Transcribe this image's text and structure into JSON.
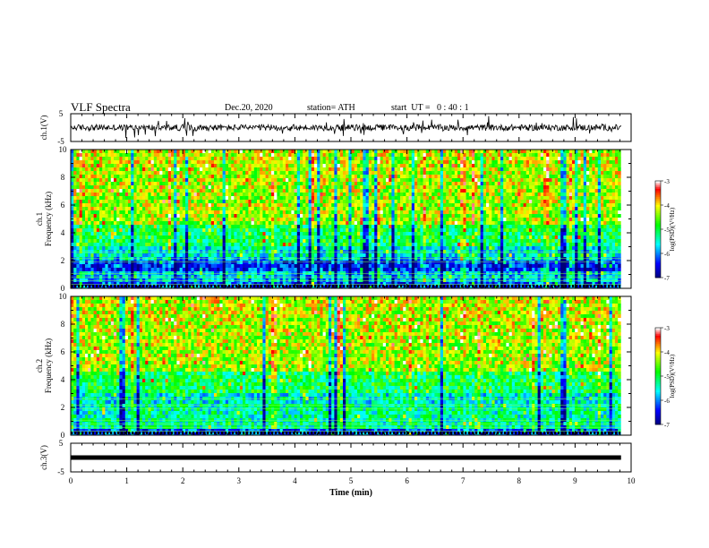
{
  "header": {
    "title": "VLF Spectra",
    "date": "Dec.20, 2020",
    "station": "station= ATH",
    "start": "start  UT =   0 : 40 : 1"
  },
  "chart_data": [
    {
      "type": "line",
      "name": "ch1-waveform",
      "ylabel": "ch.1(V)",
      "ylim": [
        -5,
        5
      ],
      "y_ticks": [
        "5",
        "-5"
      ],
      "xlim": [
        0,
        10
      ],
      "data_extent_x": [
        0,
        9.82
      ],
      "baseline_y": 0,
      "noise_amplitude": 2.5
    },
    {
      "type": "heatmap",
      "name": "ch1-spectrogram",
      "ylabel": "ch.1\nFrequency (kHz)",
      "ylim": [
        0,
        10
      ],
      "y_ticks": [
        "0",
        "2",
        "4",
        "6",
        "8",
        "10"
      ],
      "xlim": [
        0,
        10
      ],
      "data_extent_x": [
        0,
        9.82
      ],
      "colorbar": {
        "label": "log(PSD)(V²/Hz)",
        "range": [
          -7,
          -3
        ],
        "ticks": [
          "-3",
          "-4",
          "-5",
          "-6",
          "-7"
        ],
        "colors": [
          "#000000",
          "#0000ff",
          "#00ffff",
          "#00ff00",
          "#ffff00",
          "#ff0000",
          "#ffffff"
        ]
      }
    },
    {
      "type": "heatmap",
      "name": "ch2-spectrogram",
      "ylabel": "ch.2\nFrequency (kHz)",
      "ylim": [
        0,
        10
      ],
      "y_ticks": [
        "0",
        "2",
        "4",
        "6",
        "8",
        "10"
      ],
      "xlim": [
        0,
        10
      ],
      "data_extent_x": [
        0,
        9.82
      ],
      "colorbar": {
        "label": "log(PSD)(V²/Hz)",
        "range": [
          -7,
          -3
        ],
        "ticks": [
          "-3",
          "-4",
          "-5",
          "-6",
          "-7"
        ],
        "colors": [
          "#000000",
          "#0000ff",
          "#00ffff",
          "#00ff00",
          "#ffff00",
          "#ff0000",
          "#ffffff"
        ]
      }
    },
    {
      "type": "line",
      "name": "ch3-waveform",
      "ylabel": "ch.3(V)",
      "ylim": [
        -5,
        5
      ],
      "y_ticks": [
        "5",
        "-5"
      ],
      "xlim": [
        0,
        10
      ],
      "data_extent_x": [
        0,
        9.82
      ],
      "baseline_y": 0,
      "noise_amplitude": 0.5
    }
  ],
  "x_axis": {
    "label": "Time  (min)",
    "ticks": [
      "0",
      "1",
      "2",
      "3",
      "4",
      "5",
      "6",
      "7",
      "8",
      "9",
      "10"
    ]
  }
}
